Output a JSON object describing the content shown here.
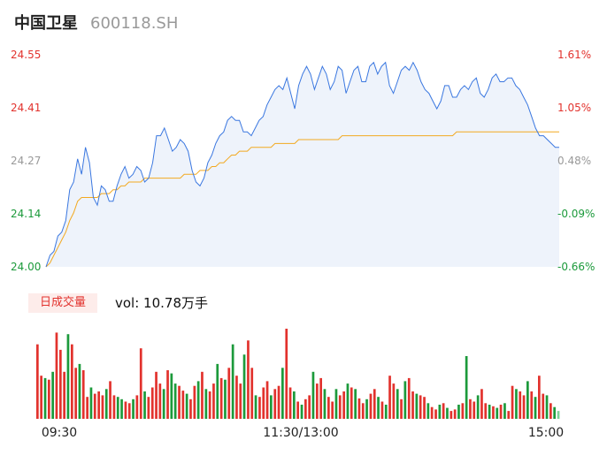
{
  "header": {
    "name": "中国卫星",
    "code": "600118.SH"
  },
  "volume_panel": {
    "tag": "日成交量",
    "vol_text": "vol: 10.78万手"
  },
  "colors": {
    "price": "#3a77e0",
    "avg": "#f2a920",
    "up": "#e2322d",
    "down": "#1c9a3b",
    "neutral": "#999999",
    "fill": "#eef3fb"
  },
  "chart_data": [
    {
      "type": "line",
      "left_ticks": [
        "24.55",
        "24.41",
        "24.27",
        "24.14",
        "24.00"
      ],
      "right_ticks": [
        "1.61%",
        "1.05%",
        "0.48%",
        "-0.09%",
        "-0.66%"
      ],
      "ylim": [
        24.0,
        24.55
      ],
      "x_labels": [
        "09:30",
        "11:30/13:00",
        "15:00"
      ],
      "series": [
        {
          "values": [
            24.0,
            24.03,
            24.04,
            24.08,
            24.09,
            24.12,
            24.2,
            24.22,
            24.28,
            24.24,
            24.31,
            24.27,
            24.18,
            24.16,
            24.21,
            24.2,
            24.17,
            24.17,
            24.21,
            24.24,
            24.26,
            24.23,
            24.24,
            24.26,
            24.25,
            24.22,
            24.23,
            24.27,
            24.34,
            24.34,
            24.36,
            24.33,
            24.3,
            24.31,
            24.33,
            24.32,
            24.3,
            24.25,
            24.22,
            24.21,
            24.23,
            24.27,
            24.29,
            24.32,
            24.34,
            24.35,
            24.38,
            24.39,
            24.38,
            24.38,
            24.35,
            24.35,
            24.34,
            24.36,
            24.38,
            24.39,
            24.42,
            24.44,
            24.46,
            24.47,
            24.46,
            24.49,
            24.45,
            24.41,
            24.47,
            24.5,
            24.52,
            24.5,
            24.46,
            24.49,
            24.52,
            24.5,
            24.46,
            24.48,
            24.52,
            24.51,
            24.45,
            24.48,
            24.51,
            24.52,
            24.48,
            24.48,
            24.52,
            24.53,
            24.5,
            24.52,
            24.53,
            24.47,
            24.45,
            24.48,
            24.51,
            24.52,
            24.51,
            24.53,
            24.51,
            24.48,
            24.46,
            24.45,
            24.43,
            24.41,
            24.43,
            24.47,
            24.47,
            24.44,
            24.44,
            24.46,
            24.47,
            24.46,
            24.48,
            24.49,
            24.45,
            24.44,
            24.46,
            24.49,
            24.5,
            24.48,
            24.48,
            24.49,
            24.49,
            24.47,
            24.46,
            24.44,
            24.42,
            24.39,
            24.36,
            24.34,
            24.34,
            24.33,
            24.32,
            24.31,
            24.31
          ]
        },
        {
          "values": [
            24.0,
            24.01,
            24.03,
            24.05,
            24.07,
            24.09,
            24.12,
            24.14,
            24.17,
            24.18,
            24.18,
            24.18,
            24.18,
            24.18,
            24.19,
            24.19,
            24.19,
            24.2,
            24.2,
            24.21,
            24.21,
            24.22,
            24.22,
            24.22,
            24.22,
            24.23,
            24.23,
            24.23,
            24.23,
            24.23,
            24.23,
            24.23,
            24.23,
            24.23,
            24.23,
            24.24,
            24.24,
            24.24,
            24.24,
            24.25,
            24.25,
            24.25,
            24.26,
            24.26,
            24.27,
            24.27,
            24.28,
            24.29,
            24.29,
            24.3,
            24.3,
            24.3,
            24.31,
            24.31,
            24.31,
            24.31,
            24.31,
            24.31,
            24.32,
            24.32,
            24.32,
            24.32,
            24.32,
            24.32,
            24.33,
            24.33,
            24.33,
            24.33,
            24.33,
            24.33,
            24.33,
            24.33,
            24.33,
            24.33,
            24.33,
            24.34,
            24.34,
            24.34,
            24.34,
            24.34,
            24.34,
            24.34,
            24.34,
            24.34,
            24.34,
            24.34,
            24.34,
            24.34,
            24.34,
            24.34,
            24.34,
            24.34,
            24.34,
            24.34,
            24.34,
            24.34,
            24.34,
            24.34,
            24.34,
            24.34,
            24.34,
            24.34,
            24.34,
            24.34,
            24.35,
            24.35,
            24.35,
            24.35,
            24.35,
            24.35,
            24.35,
            24.35,
            24.35,
            24.35,
            24.35,
            24.35,
            24.35,
            24.35,
            24.35,
            24.35,
            24.35,
            24.35,
            24.35,
            24.35,
            24.35,
            24.35,
            24.35,
            24.35,
            24.35,
            24.35,
            24.35
          ]
        }
      ]
    },
    {
      "type": "bar",
      "values": [
        95,
        55,
        52,
        50,
        60,
        110,
        88,
        60,
        108,
        95,
        65,
        70,
        62,
        28,
        40,
        32,
        35,
        30,
        38,
        48,
        30,
        28,
        25,
        22,
        20,
        25,
        30,
        90,
        35,
        28,
        40,
        60,
        45,
        38,
        62,
        58,
        45,
        42,
        36,
        32,
        25,
        42,
        48,
        60,
        38,
        35,
        45,
        70,
        52,
        50,
        65,
        95,
        55,
        45,
        82,
        100,
        65,
        30,
        28,
        40,
        48,
        30,
        38,
        42,
        65,
        115,
        40,
        35,
        22,
        18,
        25,
        30,
        60,
        45,
        52,
        38,
        28,
        22,
        38,
        30,
        35,
        45,
        40,
        38,
        26,
        20,
        25,
        32,
        38,
        28,
        22,
        18,
        55,
        45,
        38,
        25,
        48,
        52,
        35,
        32,
        30,
        28,
        20,
        15,
        12,
        18,
        20,
        14,
        10,
        12,
        18,
        20,
        80,
        25,
        22,
        30,
        38,
        20,
        18,
        16,
        14,
        18,
        20,
        10,
        42,
        38,
        35,
        30,
        48,
        35,
        28,
        55,
        32,
        30,
        20,
        15,
        10
      ],
      "directions": [
        1,
        1,
        0,
        1,
        0,
        1,
        1,
        1,
        0,
        1,
        1,
        0,
        1,
        1,
        0,
        1,
        1,
        1,
        0,
        1,
        1,
        0,
        0,
        1,
        1,
        0,
        1,
        1,
        0,
        1,
        1,
        1,
        1,
        0,
        1,
        0,
        0,
        1,
        1,
        0,
        1,
        1,
        0,
        1,
        0,
        1,
        1,
        0,
        1,
        0,
        1,
        0,
        1,
        1,
        0,
        1,
        1,
        0,
        1,
        1,
        1,
        0,
        1,
        1,
        0,
        1,
        1,
        0,
        1,
        0,
        1,
        1,
        0,
        1,
        1,
        0,
        1,
        1,
        0,
        1,
        1,
        0,
        1,
        0,
        1,
        1,
        0,
        1,
        1,
        0,
        1,
        0,
        1,
        1,
        0,
        1,
        0,
        1,
        1,
        0,
        1,
        1,
        0,
        1,
        1,
        0,
        1,
        0,
        1,
        1,
        0,
        1,
        0,
        1,
        1,
        0,
        1,
        1,
        0,
        1,
        0,
        1,
        0,
        1,
        1,
        0,
        1,
        1,
        0,
        1,
        0,
        1,
        1,
        0,
        1,
        0,
        2
      ]
    }
  ]
}
